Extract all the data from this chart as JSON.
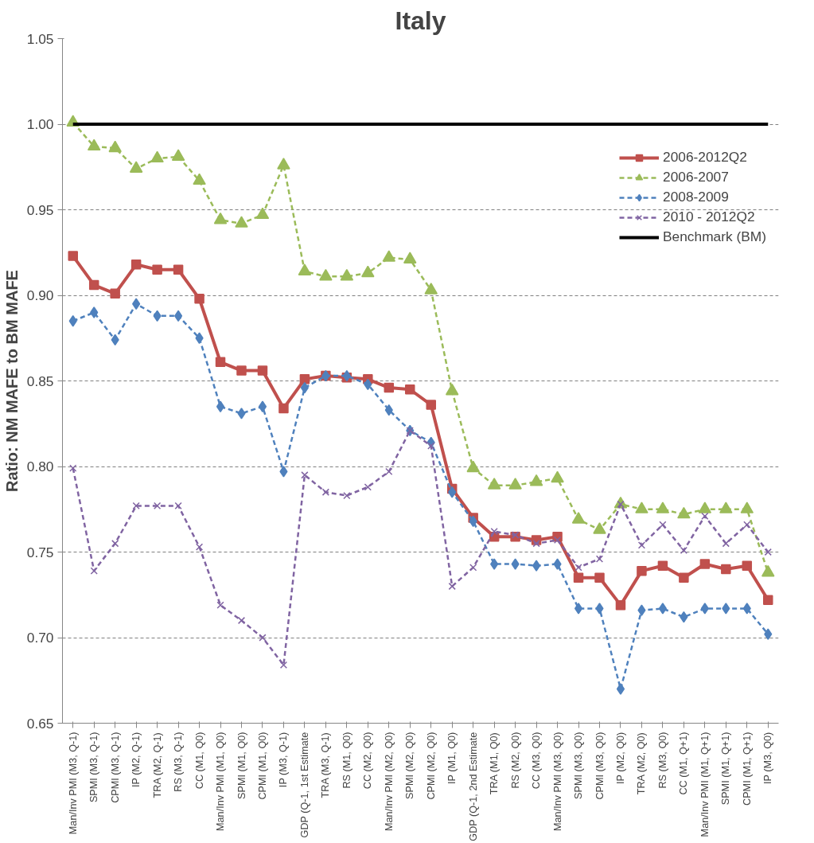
{
  "chart_data": {
    "type": "line",
    "title": "Italy",
    "ylabel": "Ratio: NM MAFE to BM MAFE",
    "categories": [
      "Man/Inv PMI (M3, Q-1)",
      "SPMI (M3, Q-1)",
      "CPMI (M3, Q-1)",
      "IP (M2, Q-1)",
      "TRA (M2, Q-1)",
      "RS (M3, Q-1)",
      "CC (M1, Q0)",
      "Man/Inv PMI (M1, Q0)",
      "SPMI (M1, Q0)",
      "CPMI (M1, Q0)",
      "IP (M3, Q-1)",
      "GDP (Q-1, 1st Estimate",
      "TRA (M3, Q-1)",
      "RS (M1, Q0)",
      "CC (M2, Q0)",
      "Man/Inv PMI (M2, Q0)",
      "SPMI (M2, Q0)",
      "CPMI (M2, Q0)",
      "IP (M1, Q0)",
      "GDP (Q-1, 2nd Estimate",
      "TRA (M1, Q0)",
      "RS (M2, Q0)",
      "CC (M3, Q0)",
      "Man/Inv PMI (M3, Q0)",
      "SPMI (M3, Q0)",
      "CPMI (M3, Q0)",
      "IP (M2, Q0)",
      "TRA (M2, Q0)",
      "RS (M3, Q0)",
      "CC (M1, Q+1)",
      "Man/Inv PMI (M1, Q+1)",
      "SPMI (M1, Q+1)",
      "CPMI (M1, Q+1)",
      "IP (M3, Q0)"
    ],
    "series": [
      {
        "name": "2006-2012Q2",
        "color": "#c0504d",
        "marker": "square",
        "line_style": "solid",
        "values": [
          0.923,
          0.906,
          0.901,
          0.918,
          0.915,
          0.915,
          0.898,
          0.861,
          0.856,
          0.856,
          0.834,
          0.851,
          0.853,
          0.852,
          0.851,
          0.846,
          0.845,
          0.836,
          0.787,
          0.77,
          0.759,
          0.759,
          0.757,
          0.759,
          0.735,
          0.735,
          0.719,
          0.739,
          0.742,
          0.735,
          0.743,
          0.74,
          0.742,
          0.722
        ]
      },
      {
        "name": "2006-2007",
        "color": "#9bbb59",
        "marker": "triangle",
        "line_style": "dashed",
        "values": [
          1.001,
          0.987,
          0.986,
          0.974,
          0.98,
          0.981,
          0.967,
          0.944,
          0.942,
          0.947,
          0.976,
          0.914,
          0.911,
          0.911,
          0.913,
          0.922,
          0.921,
          0.903,
          0.844,
          0.799,
          0.789,
          0.789,
          0.791,
          0.793,
          0.769,
          0.763,
          0.778,
          0.775,
          0.775,
          0.772,
          0.775,
          0.775,
          0.775,
          0.738
        ]
      },
      {
        "name": "2008-2009",
        "color": "#4f81bd",
        "marker": "diamond",
        "line_style": "dashed",
        "values": [
          0.885,
          0.89,
          0.874,
          0.895,
          0.888,
          0.888,
          0.875,
          0.835,
          0.831,
          0.835,
          0.797,
          0.846,
          0.853,
          0.853,
          0.848,
          0.833,
          0.821,
          0.814,
          0.785,
          0.768,
          0.743,
          0.743,
          0.742,
          0.743,
          0.717,
          0.717,
          0.67,
          0.716,
          0.717,
          0.712,
          0.717,
          0.717,
          0.717,
          0.702
        ]
      },
      {
        "name": "2010 - 2012Q2",
        "color": "#8064a2",
        "marker": "cross",
        "line_style": "dashed",
        "values": [
          0.799,
          0.739,
          0.755,
          0.777,
          0.777,
          0.777,
          0.753,
          0.719,
          0.71,
          0.7,
          0.684,
          0.795,
          0.785,
          0.783,
          0.788,
          0.797,
          0.821,
          0.812,
          0.73,
          0.741,
          0.762,
          0.76,
          0.755,
          0.757,
          0.741,
          0.746,
          0.778,
          0.754,
          0.766,
          0.751,
          0.771,
          0.755,
          0.766,
          0.75
        ]
      },
      {
        "name": "Benchmark (BM)",
        "color": "#000000",
        "marker": "none",
        "line_style": "solid",
        "values": [
          1.0,
          1.0,
          1.0,
          1.0,
          1.0,
          1.0,
          1.0,
          1.0,
          1.0,
          1.0,
          1.0,
          1.0,
          1.0,
          1.0,
          1.0,
          1.0,
          1.0,
          1.0,
          1.0,
          1.0,
          1.0,
          1.0,
          1.0,
          1.0,
          1.0,
          1.0,
          1.0,
          1.0,
          1.0,
          1.0,
          1.0,
          1.0,
          1.0,
          1.0
        ]
      }
    ],
    "ylim": [
      0.65,
      1.05
    ],
    "yticks": [
      {
        "value": 0.65,
        "label": "0.65"
      },
      {
        "value": 0.7,
        "label": "0.70"
      },
      {
        "value": 0.75,
        "label": "0.75"
      },
      {
        "value": 0.8,
        "label": "0.80"
      },
      {
        "value": 0.85,
        "label": "0.85"
      },
      {
        "value": 0.9,
        "label": "0.90"
      },
      {
        "value": 0.95,
        "label": "0.95"
      },
      {
        "value": 1.0,
        "label": "1.00"
      },
      {
        "value": 1.05,
        "label": "1.05"
      }
    ],
    "grid": "y",
    "legend": "right"
  }
}
